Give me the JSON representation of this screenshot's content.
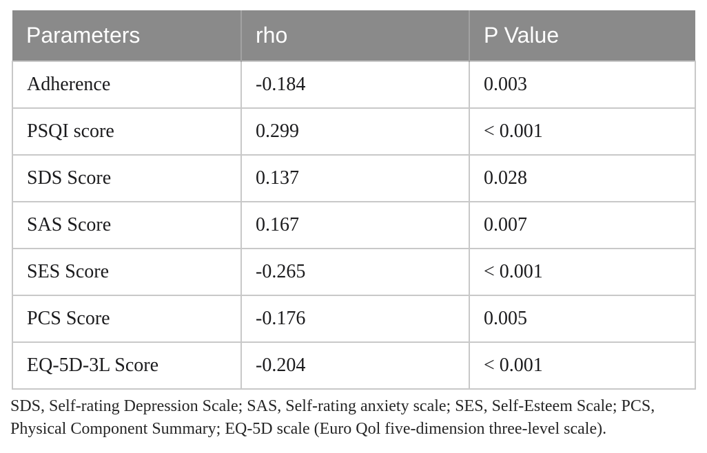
{
  "table": {
    "columns": [
      "Parameters",
      "rho",
      "P Value"
    ],
    "rows": [
      {
        "parameter": "Adherence",
        "rho": "-0.184",
        "p_value": "0.003"
      },
      {
        "parameter": "PSQI score",
        "rho": "0.299",
        "p_value": "< 0.001"
      },
      {
        "parameter": "SDS Score",
        "rho": "0.137",
        "p_value": "0.028"
      },
      {
        "parameter": "SAS Score",
        "rho": "0.167",
        "p_value": "0.007"
      },
      {
        "parameter": "SES Score",
        "rho": "-0.265",
        "p_value": "< 0.001"
      },
      {
        "parameter": "PCS Score",
        "rho": "-0.176",
        "p_value": "0.005"
      },
      {
        "parameter": "EQ-5D-3L Score",
        "rho": "-0.204",
        "p_value": "< 0.001"
      }
    ]
  },
  "footnote": "SDS, Self-rating Depression Scale; SAS, Self-rating anxiety scale; SES, Self-Esteem Scale; PCS, Physical Component Summary; EQ-5D scale (Euro Qol five-dimension three-level scale).",
  "colors": {
    "header_bg": "#8a8a8a",
    "header_text": "#ffffff",
    "cell_border": "#c8c8c8",
    "body_text": "#1b1b1d",
    "footnote_text": "#262626",
    "background": "#ffffff"
  }
}
